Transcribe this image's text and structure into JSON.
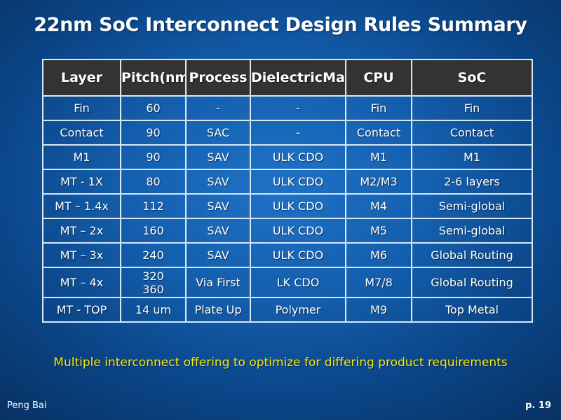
{
  "slide": {
    "title": "22nm SoC Interconnect Design Rules Summary",
    "subtitle": "Multiple interconnect offering to optimize for differing product requirements",
    "author": "Peng Bai",
    "page": "p. 19"
  },
  "colors": {
    "background": "#145fae",
    "header_fill": "#333333",
    "grid_lines": "#d9e7f5",
    "subtitle_text": "#f5e80b",
    "body_text": "#ffffff"
  },
  "table": {
    "headers": [
      [
        "Layer"
      ],
      [
        "Pitch",
        "(nm)"
      ],
      [
        "Process"
      ],
      [
        "Dielectric",
        "Materials"
      ],
      [
        "CPU"
      ],
      [
        "SoC"
      ]
    ],
    "rows": [
      [
        [
          "Fin"
        ],
        [
          "60"
        ],
        [
          "-"
        ],
        [
          "-"
        ],
        [
          "Fin"
        ],
        [
          "Fin"
        ]
      ],
      [
        [
          "Contact"
        ],
        [
          "90"
        ],
        [
          "SAC"
        ],
        [
          "-"
        ],
        [
          "Contact"
        ],
        [
          "Contact"
        ]
      ],
      [
        [
          "M1"
        ],
        [
          "90"
        ],
        [
          "SAV"
        ],
        [
          "ULK CDO"
        ],
        [
          "M1"
        ],
        [
          "M1"
        ]
      ],
      [
        [
          "MT - 1X"
        ],
        [
          "80"
        ],
        [
          "SAV"
        ],
        [
          "ULK CDO"
        ],
        [
          "M2/M3"
        ],
        [
          "2-6 layers"
        ]
      ],
      [
        [
          "MT – 1.4x"
        ],
        [
          "112"
        ],
        [
          "SAV"
        ],
        [
          "ULK CDO"
        ],
        [
          "M4"
        ],
        [
          "Semi-global"
        ]
      ],
      [
        [
          "MT – 2x"
        ],
        [
          "160"
        ],
        [
          "SAV"
        ],
        [
          "ULK CDO"
        ],
        [
          "M5"
        ],
        [
          "Semi-global"
        ]
      ],
      [
        [
          "MT – 3x"
        ],
        [
          "240"
        ],
        [
          "SAV"
        ],
        [
          "ULK CDO"
        ],
        [
          "M6"
        ],
        [
          "Global Routing"
        ]
      ],
      [
        [
          "MT – 4x"
        ],
        [
          "320",
          "360"
        ],
        [
          "Via First"
        ],
        [
          "LK CDO"
        ],
        [
          "M7/8"
        ],
        [
          "Global Routing"
        ]
      ],
      [
        [
          "MT - TOP"
        ],
        [
          "14 um"
        ],
        [
          "Plate Up"
        ],
        [
          "Polymer"
        ],
        [
          "M9"
        ],
        [
          "Top Metal"
        ]
      ]
    ]
  }
}
